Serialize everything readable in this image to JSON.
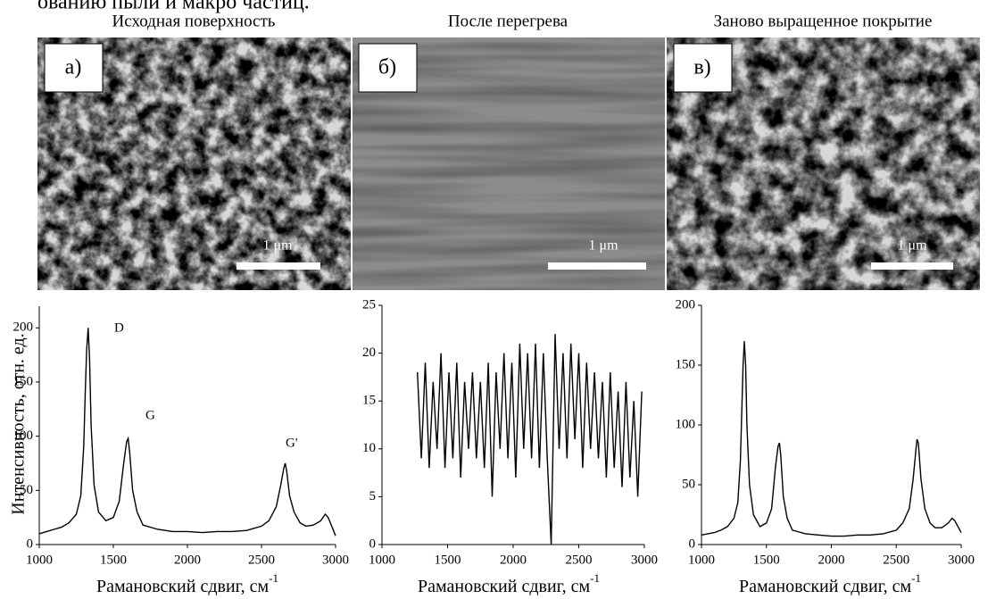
{
  "caption_fragment": "ованию пыли и макро частиц.",
  "chart_data": [
    {
      "type": "line",
      "title": "Исходная поверхность",
      "panel_label": "а)",
      "scale_bar": "1 μm",
      "ylabel": "Интенсивность, отн. ед.",
      "xlabel": "Рамановский сдвиг, см",
      "xlabel_sup": "-1",
      "annotations": [
        "D",
        "G",
        "G'"
      ],
      "color": "#000000",
      "xlim": [
        1000,
        3000
      ],
      "xticks": [
        1000,
        1500,
        2000,
        2500,
        3000
      ],
      "ylim": [
        0,
        220
      ],
      "yticks": [
        0,
        50,
        100,
        150,
        200
      ],
      "x": [
        1000,
        1050,
        1100,
        1150,
        1200,
        1250,
        1280,
        1300,
        1310,
        1320,
        1330,
        1340,
        1350,
        1370,
        1400,
        1450,
        1500,
        1540,
        1570,
        1590,
        1600,
        1610,
        1630,
        1660,
        1700,
        1800,
        1900,
        2000,
        2100,
        2200,
        2300,
        2400,
        2500,
        2550,
        2600,
        2630,
        2650,
        2660,
        2670,
        2690,
        2720,
        2760,
        2800,
        2850,
        2900,
        2930,
        2950,
        2980,
        3000
      ],
      "values": [
        10,
        12,
        14,
        16,
        20,
        28,
        45,
        90,
        140,
        180,
        200,
        170,
        110,
        55,
        30,
        22,
        25,
        40,
        75,
        95,
        98,
        85,
        50,
        30,
        18,
        14,
        12,
        12,
        11,
        12,
        12,
        13,
        17,
        22,
        35,
        55,
        70,
        75,
        68,
        45,
        30,
        20,
        17,
        18,
        22,
        28,
        25,
        15,
        8
      ]
    },
    {
      "type": "line",
      "title": "После перегрева",
      "panel_label": "б)",
      "scale_bar": "1 μm",
      "xlabel": "Рамановский сдвиг, см",
      "xlabel_sup": "-1",
      "color": "#000000",
      "xlim": [
        1000,
        3000
      ],
      "xticks": [
        1000,
        1500,
        2000,
        2500,
        3000
      ],
      "ylim": [
        0,
        25
      ],
      "yticks": [
        0,
        5,
        10,
        15,
        20,
        25
      ],
      "x": [
        1270,
        1300,
        1330,
        1360,
        1390,
        1420,
        1450,
        1480,
        1510,
        1540,
        1570,
        1600,
        1630,
        1660,
        1690,
        1720,
        1750,
        1780,
        1810,
        1840,
        1870,
        1900,
        1930,
        1960,
        1990,
        2020,
        2050,
        2080,
        2110,
        2140,
        2170,
        2200,
        2230,
        2260,
        2290,
        2320,
        2350,
        2380,
        2410,
        2440,
        2470,
        2500,
        2530,
        2560,
        2590,
        2620,
        2650,
        2680,
        2710,
        2740,
        2770,
        2800,
        2830,
        2860,
        2890,
        2920,
        2950,
        2980
      ],
      "values": [
        18,
        9,
        19,
        8,
        17,
        10,
        20,
        8,
        18,
        9,
        19,
        7,
        17,
        10,
        18,
        9,
        17,
        8,
        19,
        5,
        18,
        10,
        20,
        9,
        19,
        7,
        21,
        10,
        20,
        9,
        21,
        8,
        20,
        9,
        0,
        22,
        10,
        20,
        9,
        21,
        11,
        20,
        8,
        19,
        10,
        18,
        9,
        17,
        7,
        18,
        8,
        16,
        6,
        17,
        7,
        15,
        5,
        16
      ]
    },
    {
      "type": "line",
      "title": "Заново выращенное покрытие",
      "panel_label": "в)",
      "scale_bar": "1 μm",
      "xlabel": "Рамановский сдвиг, см",
      "xlabel_sup": "-1",
      "color": "#000000",
      "xlim": [
        1000,
        3000
      ],
      "xticks": [
        1000,
        1500,
        2000,
        2500,
        3000
      ],
      "ylim": [
        0,
        200
      ],
      "yticks": [
        0,
        50,
        100,
        150,
        200
      ],
      "x": [
        1000,
        1050,
        1100,
        1150,
        1200,
        1250,
        1280,
        1300,
        1310,
        1320,
        1330,
        1340,
        1350,
        1370,
        1400,
        1450,
        1500,
        1540,
        1570,
        1590,
        1600,
        1610,
        1630,
        1660,
        1700,
        1800,
        1900,
        2000,
        2100,
        2200,
        2300,
        2400,
        2500,
        2550,
        2600,
        2630,
        2650,
        2660,
        2670,
        2690,
        2720,
        2760,
        2800,
        2850,
        2900,
        2930,
        2950,
        2980,
        3000
      ],
      "values": [
        8,
        9,
        10,
        12,
        15,
        22,
        35,
        70,
        110,
        150,
        170,
        150,
        100,
        50,
        25,
        15,
        18,
        30,
        65,
        82,
        85,
        75,
        40,
        22,
        12,
        9,
        8,
        7,
        7,
        8,
        8,
        9,
        12,
        18,
        30,
        55,
        78,
        88,
        85,
        55,
        30,
        18,
        14,
        14,
        18,
        22,
        20,
        14,
        10
      ]
    }
  ]
}
